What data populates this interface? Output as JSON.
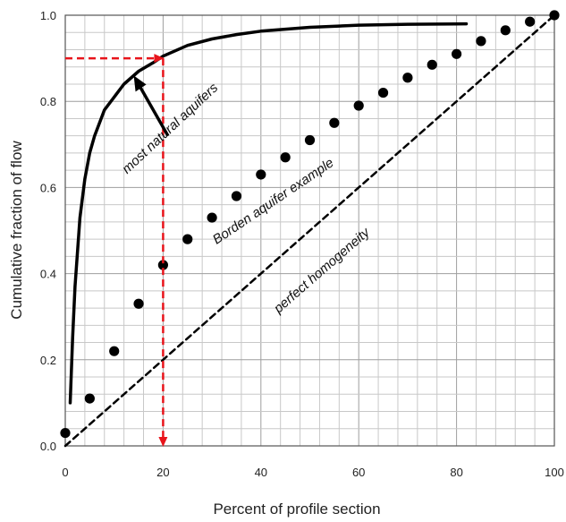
{
  "chart_data": {
    "type": "line",
    "title": "",
    "xlabel": "Percent of profile section",
    "ylabel": "Cumulative fraction of flow",
    "xlim": [
      0,
      100
    ],
    "ylim": [
      0,
      1
    ],
    "x_ticks": [
      "0",
      "20",
      "40",
      "60",
      "80",
      "100"
    ],
    "y_ticks": [
      "0.0",
      "0.2",
      "0.4",
      "0.6",
      "0.8",
      "1.0"
    ],
    "grid": true,
    "legend": "none",
    "series": [
      {
        "style": "solid-thick",
        "color": "#000000",
        "x": [
          1,
          1.5,
          2,
          3,
          4,
          5,
          6,
          8,
          10,
          12,
          15,
          18,
          20,
          25,
          30,
          35,
          40,
          50,
          60,
          70,
          82
        ],
        "y": [
          0.1,
          0.25,
          0.37,
          0.53,
          0.62,
          0.68,
          0.72,
          0.78,
          0.81,
          0.84,
          0.87,
          0.89,
          0.905,
          0.93,
          0.945,
          0.955,
          0.963,
          0.972,
          0.977,
          0.979,
          0.98
        ]
      },
      {
        "style": "dots",
        "color": "#000000",
        "x": [
          0,
          5,
          10,
          15,
          20,
          25,
          30,
          35,
          40,
          45,
          50,
          55,
          60,
          65,
          70,
          75,
          80,
          85,
          90,
          95,
          100
        ],
        "y": [
          0.03,
          0.11,
          0.22,
          0.33,
          0.42,
          0.48,
          0.53,
          0.58,
          0.63,
          0.67,
          0.71,
          0.75,
          0.79,
          0.82,
          0.855,
          0.885,
          0.91,
          0.94,
          0.965,
          0.985,
          1.0
        ]
      },
      {
        "style": "dashed",
        "color": "#000000",
        "x": [
          0,
          100
        ],
        "y": [
          0,
          1
        ]
      }
    ],
    "reference_lines": {
      "color": "#e8141b",
      "x": 20,
      "y": 0.9
    },
    "annotations": [
      {
        "text": "most natural aquifers",
        "x": 22,
        "y": 0.73,
        "angle": -43
      },
      {
        "text": "Borden aquifer example",
        "x": 43,
        "y": 0.56,
        "angle": -34
      },
      {
        "text": "perfect homogeneity",
        "x": 53,
        "y": 0.4,
        "angle": -41
      }
    ]
  }
}
